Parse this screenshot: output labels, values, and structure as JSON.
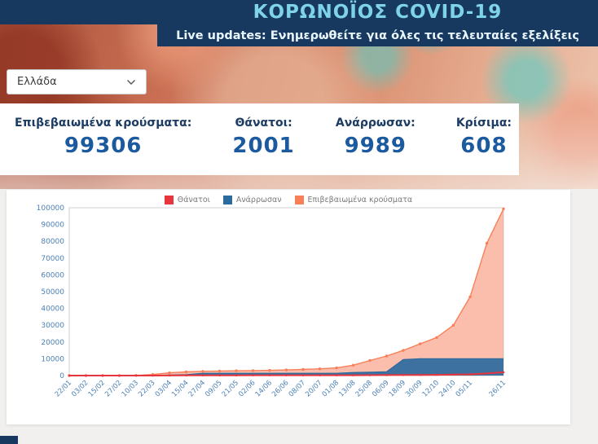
{
  "header": {
    "title": "ΚΟΡΩΝΟΪΟΣ COVID-19",
    "subtitle": "Live updates: Ενημερωθείτε για όλες τις τελευταίες εξελίξεις"
  },
  "country_select": {
    "value": "Ελλάδα"
  },
  "stats": [
    {
      "label": "Επιβεβαιωμένα κρούσματα:",
      "value": "99306"
    },
    {
      "label": "Θάνατοι:",
      "value": "2001"
    },
    {
      "label": "Ανάρρωσαν:",
      "value": "9989"
    },
    {
      "label": "Κρίσιμα:",
      "value": "608"
    }
  ],
  "colors": {
    "navy": "#17395f",
    "title_cyan": "#7ed3ea",
    "stat_number_blue": "#1b5a9e",
    "deaths_red": "#e8353d",
    "recovered_blue": "#2b6a9e",
    "confirmed_salmon": "#f87f58"
  },
  "chart_data": {
    "type": "area",
    "legend_position": "top",
    "axis_color": "#4a7fb5",
    "grid": false,
    "ylim": [
      0,
      100000
    ],
    "yticks": [
      0,
      10000,
      20000,
      30000,
      40000,
      50000,
      60000,
      70000,
      80000,
      90000,
      100000
    ],
    "x": [
      "22/01",
      "03/02",
      "15/02",
      "27/02",
      "10/03",
      "22/03",
      "03/04",
      "15/04",
      "27/04",
      "09/05",
      "21/05",
      "02/06",
      "14/06",
      "26/06",
      "08/07",
      "20/07",
      "01/08",
      "13/08",
      "25/08",
      "06/09",
      "18/09",
      "30/09",
      "12/10",
      "24/10",
      "05/11",
      "",
      "26/11"
    ],
    "draw_order": [
      2,
      1,
      0
    ],
    "series": [
      {
        "name": "Θάνατοι",
        "color": "#e8353d",
        "fill": "none",
        "line_width": 2,
        "markers": true,
        "marker_size": 1.3,
        "values": [
          0,
          0,
          0,
          0,
          4,
          15,
          68,
          102,
          136,
          150,
          166,
          175,
          183,
          190,
          193,
          199,
          206,
          216,
          243,
          284,
          338,
          391,
          449,
          559,
          749,
          1263,
          2001
        ]
      },
      {
        "name": "Ανάρρωσαν",
        "color": "#2b6a9e",
        "fill": "rgba(43,106,158,0.92)",
        "line_width": 1.2,
        "markers": false,
        "marker_size": 0,
        "values": [
          0,
          0,
          0,
          0,
          0,
          30,
          269,
          577,
          1374,
          1374,
          1374,
          1374,
          1374,
          1374,
          1374,
          1374,
          1374,
          1857,
          2000,
          2300,
          9500,
          9989,
          9989,
          9989,
          9989,
          9989,
          9989
        ]
      },
      {
        "name": "Επιβεβαιωμένα κρούσματα",
        "color": "#f87f58",
        "fill": "rgba(248,136,106,0.55)",
        "line_width": 1.4,
        "markers": true,
        "marker_size": 1.7,
        "values": [
          0,
          0,
          0,
          3,
          89,
          624,
          1673,
          2192,
          2534,
          2710,
          2853,
          2941,
          3121,
          3343,
          3622,
          4012,
          4587,
          6177,
          8987,
          11663,
          14978,
          18886,
          22652,
          29992,
          46892,
          78825,
          99306
        ]
      }
    ]
  }
}
